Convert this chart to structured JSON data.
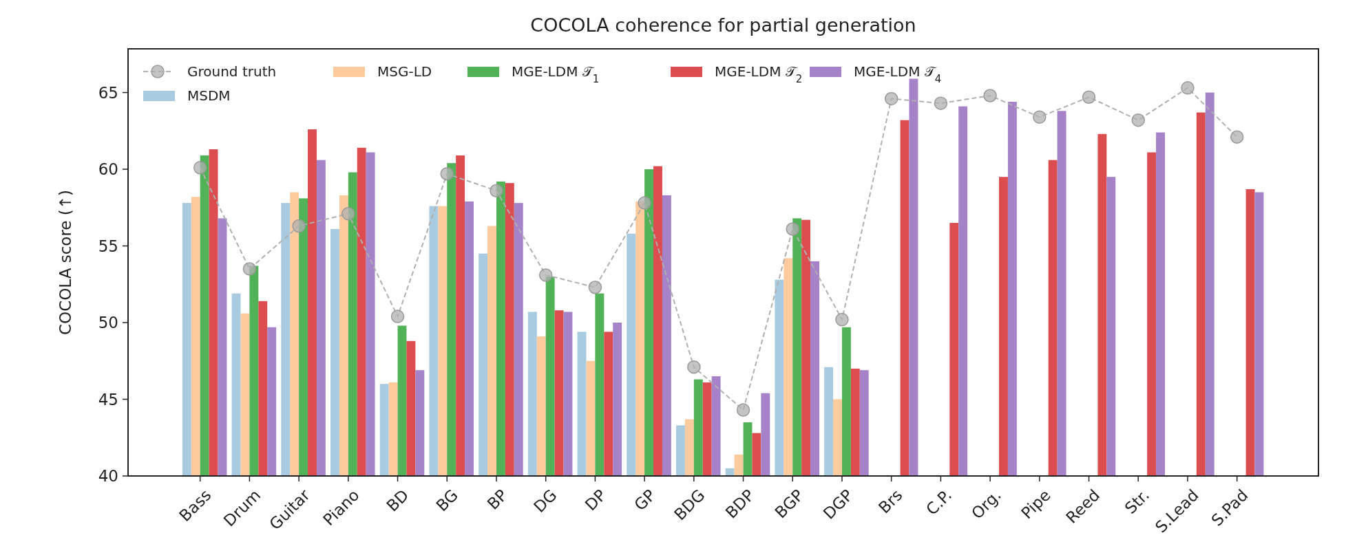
{
  "chart_data": {
    "type": "bar",
    "title": "COCOLA coherence for partial generation",
    "ylabel": "COCOLA score (↑)",
    "categories": [
      "Bass",
      "Drum",
      "Guitar",
      "Piano",
      "BD",
      "BG",
      "BP",
      "DG",
      "DP",
      "GP",
      "BDG",
      "BDP",
      "BGP",
      "DGP",
      "Brs",
      "C.P.",
      "Org.",
      "Pipe",
      "Reed",
      "Str.",
      "S.Lead",
      "S.Pad"
    ],
    "series": [
      {
        "name": "Ground truth",
        "type": "line",
        "color": "#b0b0b0",
        "marker": "circle",
        "line_style": "dashed",
        "values": [
          60.1,
          53.5,
          56.3,
          57.1,
          50.4,
          59.7,
          58.6,
          53.1,
          52.3,
          57.8,
          47.1,
          44.3,
          56.1,
          50.2,
          64.6,
          64.3,
          64.8,
          63.4,
          64.7,
          63.2,
          65.3,
          62.1
        ]
      },
      {
        "name": "MSDM",
        "color": "#a9cbe2",
        "values": [
          57.8,
          51.9,
          57.8,
          56.1,
          46.0,
          57.6,
          54.5,
          50.7,
          49.4,
          55.8,
          43.3,
          40.5,
          52.8,
          47.1,
          null,
          null,
          null,
          null,
          null,
          null,
          null,
          null
        ]
      },
      {
        "name": "MSG-LD",
        "color": "#fdcb9e",
        "values": [
          58.2,
          50.6,
          58.5,
          58.3,
          46.1,
          57.6,
          56.3,
          49.1,
          47.5,
          57.9,
          43.7,
          41.4,
          54.2,
          45.0,
          null,
          null,
          null,
          null,
          null,
          null,
          null,
          null
        ]
      },
      {
        "name": "MGE-LDM 𝒯$_{1}$",
        "color": "#52b257",
        "values": [
          60.9,
          53.7,
          58.1,
          59.8,
          49.8,
          60.4,
          59.2,
          53.0,
          51.9,
          60.0,
          46.3,
          43.5,
          56.8,
          49.7,
          null,
          null,
          null,
          null,
          null,
          null,
          null,
          null
        ]
      },
      {
        "name": "MGE-LDM 𝒯$_{2}$",
        "color": "#db4d4e",
        "values": [
          61.3,
          51.4,
          62.6,
          61.4,
          48.8,
          60.9,
          59.1,
          50.8,
          49.4,
          60.2,
          46.1,
          42.8,
          56.7,
          47.0,
          63.2,
          56.5,
          59.5,
          60.6,
          62.3,
          61.1,
          63.7,
          58.7
        ]
      },
      {
        "name": "MGE-LDM 𝒯$_{4}$",
        "color": "#a682c8",
        "values": [
          56.8,
          49.7,
          60.6,
          61.1,
          46.9,
          57.9,
          57.8,
          50.7,
          50.0,
          58.3,
          46.5,
          45.4,
          54.0,
          46.9,
          65.9,
          64.1,
          64.4,
          63.8,
          59.5,
          62.4,
          65.0,
          58.5
        ]
      }
    ],
    "ylim": [
      40,
      67.85
    ],
    "yticks": [
      40,
      45,
      50,
      55,
      60,
      65
    ],
    "grid": false,
    "legend": "top left"
  }
}
